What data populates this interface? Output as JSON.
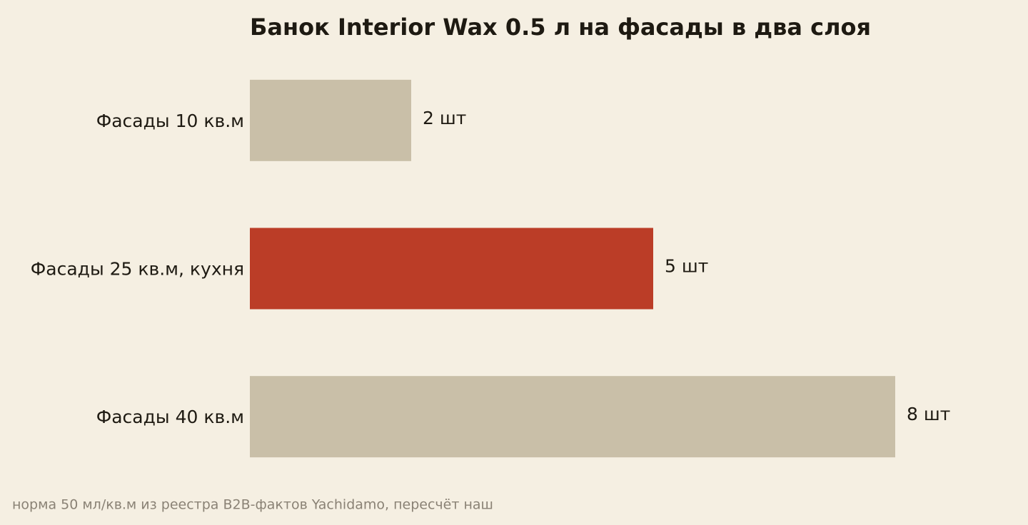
{
  "chart_data": {
    "type": "bar",
    "orientation": "horizontal",
    "title": "Банок Interior Wax 0.5 л на фасады в два слоя",
    "categories": [
      "Фасады 10 кв.м",
      "Фасады 25 кв.м, кухня",
      "Фасады 40 кв.м"
    ],
    "values": [
      2,
      5,
      8
    ],
    "value_labels": [
      "2 шт",
      "5 шт",
      "8 шт"
    ],
    "colors": [
      "#c9bfa8",
      "#bb3d27",
      "#c9bfa8"
    ],
    "xlim": [
      0,
      8
    ],
    "caption": "норма 50 мл/кв.м из реестра B2B-фактов Yachidamo, пересчёт наш"
  }
}
